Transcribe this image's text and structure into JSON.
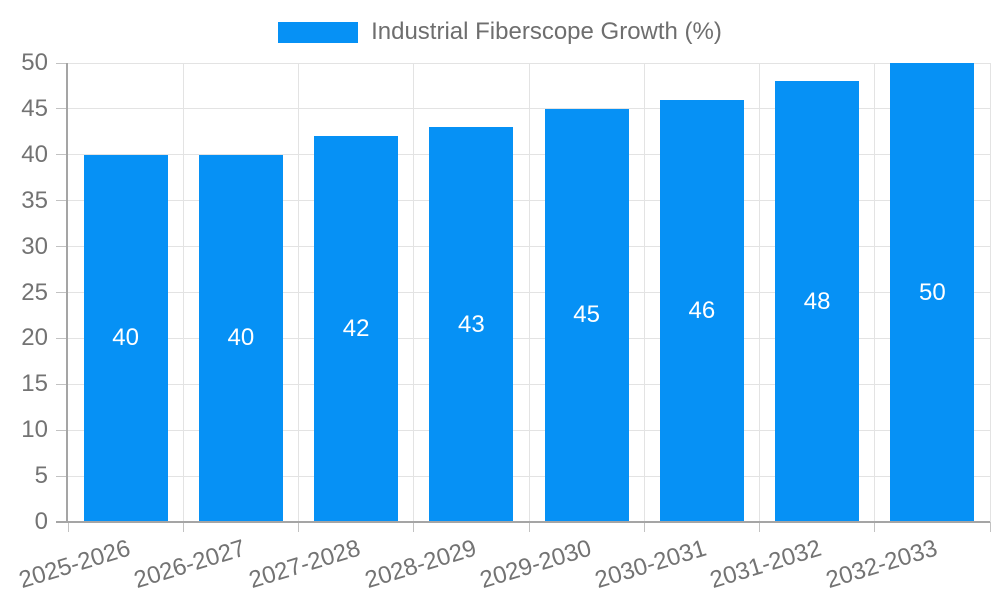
{
  "legend": {
    "series_label": "Industrial Fiberscope Growth (%)"
  },
  "chart_data": {
    "type": "bar",
    "title": "Industrial Fiberscope Growth (%)",
    "categories": [
      "2025-2026",
      "2026-2027",
      "2027-2028",
      "2028-2029",
      "2029-2030",
      "2030-2031",
      "2031-2032",
      "2032-2033"
    ],
    "values": [
      40,
      40,
      42,
      43,
      45,
      46,
      48,
      50
    ],
    "value_labels_shown": true,
    "value_label_position": "inside-center",
    "xlabel": "",
    "ylabel": "",
    "ylim": [
      0,
      50
    ],
    "ytick_step": 5,
    "yticks": [
      0,
      5,
      10,
      15,
      20,
      25,
      30,
      35,
      40,
      45,
      50
    ],
    "grid": true,
    "legend_position": "top",
    "colors": {
      "bar": "#0691f5",
      "value_text": "#ffffff",
      "axis_text": "#737373",
      "legend_text": "#6e6e6e",
      "grid": "#e3e3e3",
      "tick": "#c2c2c2",
      "axis_border": "#a5a5a5",
      "background": "#ffffff"
    }
  }
}
